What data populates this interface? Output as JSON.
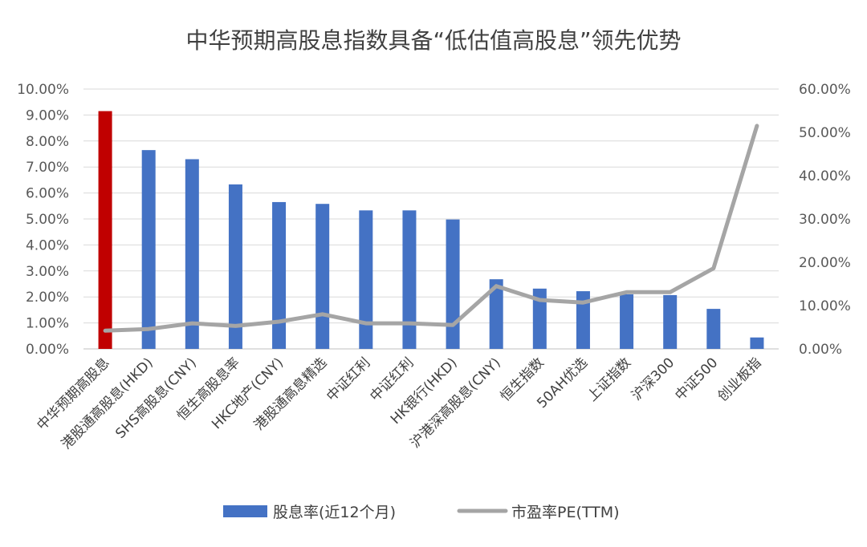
{
  "chart_data": {
    "type": "bar",
    "title": "中华预期高股息指数具备“低估值高股息”领先优势",
    "categories": [
      "中华预期高股息",
      "港股通高股息(HKD)",
      "SHS高股息(CNY)",
      "恒生高股息率",
      "HKC地产(CNY)",
      "港股通高息精选",
      "中证红利",
      "中证红利",
      "HK银行(HKD)",
      "沪港深高股息(CNY)",
      "恒生指数",
      "50AH优选",
      "上证指数",
      "沪深300",
      "中证500",
      "创业板指"
    ],
    "series": [
      {
        "name": "股息率(近12个月)",
        "type": "bar",
        "axis": "left",
        "color": "#4472C4",
        "highlight_index": 0,
        "highlight_color": "#C00000",
        "values": [
          9.15,
          7.65,
          7.3,
          6.33,
          5.65,
          5.58,
          5.33,
          5.33,
          4.98,
          2.68,
          2.32,
          2.22,
          2.1,
          2.07,
          1.54,
          0.44
        ]
      },
      {
        "name": "市盈率PE(TTM)",
        "type": "line",
        "axis": "right",
        "color": "#A5A5A5",
        "values": [
          4.2,
          4.6,
          5.9,
          5.3,
          6.3,
          8.0,
          5.9,
          5.9,
          5.5,
          14.5,
          11.3,
          10.7,
          13.1,
          13.1,
          18.6,
          51.5
        ]
      }
    ],
    "y_left": {
      "min": 0,
      "max": 10,
      "step": 1,
      "ticks": [
        "0.00%",
        "1.00%",
        "2.00%",
        "3.00%",
        "4.00%",
        "5.00%",
        "6.00%",
        "7.00%",
        "8.00%",
        "9.00%",
        "10.00%"
      ]
    },
    "y_right": {
      "min": 0,
      "max": 60,
      "step": 10,
      "ticks": [
        "0.00%",
        "10.00%",
        "20.00%",
        "30.00%",
        "40.00%",
        "50.00%",
        "60.00%"
      ]
    },
    "legend": {
      "placement": "bottom",
      "items": [
        "股息率(近12个月)",
        "市盈率PE(TTM)"
      ]
    },
    "gridlines": true
  }
}
